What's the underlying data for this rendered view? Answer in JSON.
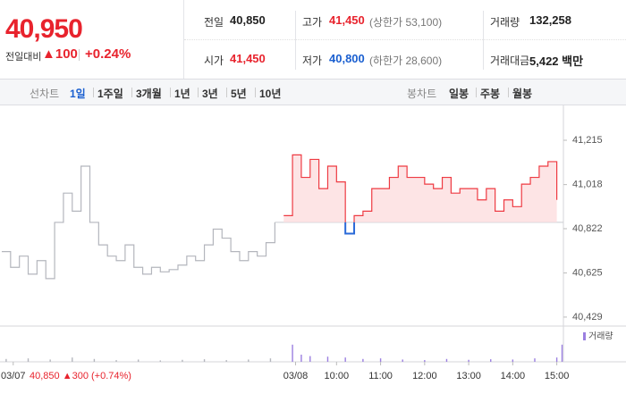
{
  "header": {
    "price": "40,950",
    "price_color": "#e8232d",
    "change_label": "전일대비",
    "change": "▲100",
    "change_rate": "+0.24%",
    "stats": [
      {
        "label": "전일",
        "value": "40,850",
        "color": "#222222"
      },
      {
        "label": "고가",
        "value": "41,450",
        "color": "#e8232d",
        "note": "(상한가 53,100)"
      },
      {
        "label": "거래량",
        "value": "132,258",
        "color": "#222222"
      },
      {
        "label": "시가",
        "value": "41,450",
        "color": "#e8232d"
      },
      {
        "label": "저가",
        "value": "40,800",
        "color": "#1a5fd0",
        "note": "(하한가 28,600)"
      },
      {
        "label": "거래대금",
        "value": "5,422 백만",
        "color": "#222222"
      }
    ]
  },
  "tabs": {
    "line_label": "선차트",
    "line_periods": [
      "1일",
      "1주일",
      "3개월",
      "1년",
      "3년",
      "5년",
      "10년"
    ],
    "line_active": 0,
    "candle_label": "봉차트",
    "candle_periods": [
      "일봉",
      "주봉",
      "월봉"
    ]
  },
  "chart_data": {
    "type": "line",
    "series": [
      {
        "color": "#b4b6bd",
        "x": [
          2.4,
          2.6,
          2.8,
          3.0,
          3.2,
          3.4,
          3.6,
          3.8,
          4.0,
          4.2,
          4.4,
          4.6,
          4.8,
          5.0,
          5.2,
          5.4,
          5.6,
          5.8,
          6.0,
          6.2,
          6.4,
          6.6,
          6.8,
          7.0,
          7.2,
          7.4,
          7.6,
          7.8,
          8.0,
          8.2,
          8.4,
          8.6
        ],
        "values": [
          40720,
          40650,
          40700,
          40620,
          40680,
          40600,
          40850,
          40980,
          40900,
          41100,
          40850,
          40750,
          40700,
          40680,
          40750,
          40650,
          40620,
          40650,
          40630,
          40640,
          40660,
          40700,
          40680,
          40750,
          40820,
          40780,
          40720,
          40680,
          40720,
          40700,
          40760,
          40850
        ]
      },
      {
        "color": "#ee3a42",
        "below_color": "#2a6ad8",
        "fill": "#fde4e5",
        "x": [
          8.8,
          9.0,
          9.2,
          9.4,
          9.6,
          9.8,
          10.0,
          10.2,
          10.4,
          10.6,
          10.8,
          11.0,
          11.2,
          11.4,
          11.6,
          11.8,
          12.0,
          12.2,
          12.4,
          12.6,
          12.8,
          13.0,
          13.2,
          13.4,
          13.6,
          13.8,
          14.0,
          14.2,
          14.4,
          14.6,
          14.8,
          15.0
        ],
        "values": [
          40880,
          41150,
          41050,
          41130,
          41000,
          41100,
          41030,
          40800,
          40880,
          40900,
          41000,
          41000,
          41050,
          41100,
          41050,
          41050,
          41020,
          41000,
          41050,
          40980,
          41000,
          41000,
          40950,
          41000,
          40900,
          40950,
          40920,
          41020,
          41050,
          41100,
          41120,
          40950
        ]
      }
    ],
    "baseline": 40850,
    "baseline_color": "#c9cbd1",
    "xlim": [
      2.36,
      15.15
    ],
    "ylim": [
      40389,
      41370
    ],
    "yticks": [
      {
        "value": 41215,
        "label": "41,215"
      },
      {
        "value": 41018,
        "label": "41,018"
      },
      {
        "value": 40822,
        "label": "40,822"
      },
      {
        "value": 40625,
        "label": "40,625"
      },
      {
        "value": 40429,
        "label": "40,429"
      }
    ],
    "xticks": [
      {
        "value": 2.66,
        "label": "03/07"
      },
      {
        "value": 9.07,
        "label": "03/08"
      },
      {
        "value": 10,
        "label": "10:00"
      },
      {
        "value": 11,
        "label": "11:00"
      },
      {
        "value": 12,
        "label": "12:00"
      },
      {
        "value": 13,
        "label": "13:00"
      },
      {
        "value": 14,
        "label": "14:00"
      },
      {
        "value": 15,
        "label": "15:00"
      }
    ],
    "annotation": "40,850 ▲300 (+0.74%)",
    "volume": {
      "name": "거래량",
      "color": "#9b7fe0",
      "x": [
        2.5,
        3.0,
        3.5,
        4.0,
        4.5,
        5.0,
        5.5,
        6.0,
        6.5,
        7.0,
        7.5,
        8.0,
        8.5,
        9.0,
        9.2,
        9.4,
        9.8,
        10.2,
        10.6,
        11.0,
        11.5,
        12.0,
        12.5,
        13.0,
        13.5,
        14.0,
        14.5,
        15.0,
        15.12
      ],
      "values": [
        10,
        12,
        8,
        15,
        10,
        6,
        8,
        5,
        7,
        9,
        6,
        8,
        12,
        60,
        25,
        20,
        18,
        15,
        10,
        12,
        8,
        6,
        10,
        7,
        9,
        8,
        12,
        15,
        60
      ],
      "ylim": [
        0,
        100
      ]
    }
  }
}
